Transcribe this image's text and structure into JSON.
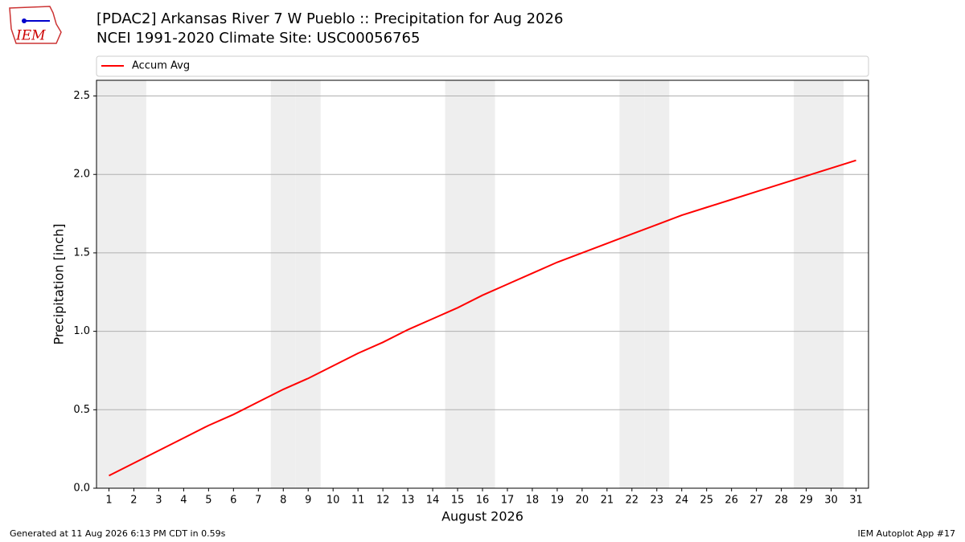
{
  "logo_text": "IEM",
  "footer": {
    "left": "Generated at 11 Aug 2026 6:13 PM CDT in 0.59s",
    "right": "IEM Autoplot App #17"
  },
  "chart_data": {
    "type": "line",
    "title": "[PDAC2] Arkansas River 7 W Pueblo :: Precipitation for Aug 2026",
    "subtitle": "NCEI 1991-2020 Climate Site: USC00056765",
    "x_label": "August 2026",
    "y_label": "Precipitation [inch]",
    "x": [
      1,
      2,
      3,
      4,
      5,
      6,
      7,
      8,
      9,
      10,
      11,
      12,
      13,
      14,
      15,
      16,
      17,
      18,
      19,
      20,
      21,
      22,
      23,
      24,
      25,
      26,
      27,
      28,
      29,
      30,
      31
    ],
    "series": [
      {
        "name": "Accum Avg",
        "color": "#ff0000",
        "values": [
          0.08,
          0.16,
          0.24,
          0.32,
          0.4,
          0.47,
          0.55,
          0.63,
          0.7,
          0.78,
          0.86,
          0.93,
          1.01,
          1.08,
          1.15,
          1.23,
          1.3,
          1.37,
          1.44,
          1.5,
          1.56,
          1.62,
          1.68,
          1.74,
          1.79,
          1.84,
          1.89,
          1.94,
          1.99,
          2.04,
          2.09
        ]
      }
    ],
    "shaded_days": [
      1,
      2,
      8,
      9,
      15,
      16,
      22,
      23,
      29,
      30
    ],
    "shade_color": "#eeeeee",
    "xlim": [
      0.5,
      31.5
    ],
    "xticks": [
      1,
      2,
      3,
      4,
      5,
      6,
      7,
      8,
      9,
      10,
      11,
      12,
      13,
      14,
      15,
      16,
      17,
      18,
      19,
      20,
      21,
      22,
      23,
      24,
      25,
      26,
      27,
      28,
      29,
      30,
      31
    ],
    "ylim": [
      0,
      2.6
    ],
    "yticks": [
      {
        "value": 0,
        "label": "0.0"
      },
      0.5,
      {
        "value": 1,
        "label": "1.0"
      },
      1.5,
      {
        "value": 2,
        "label": "2.0"
      },
      2.5
    ],
    "grid": true,
    "legend": "top"
  }
}
